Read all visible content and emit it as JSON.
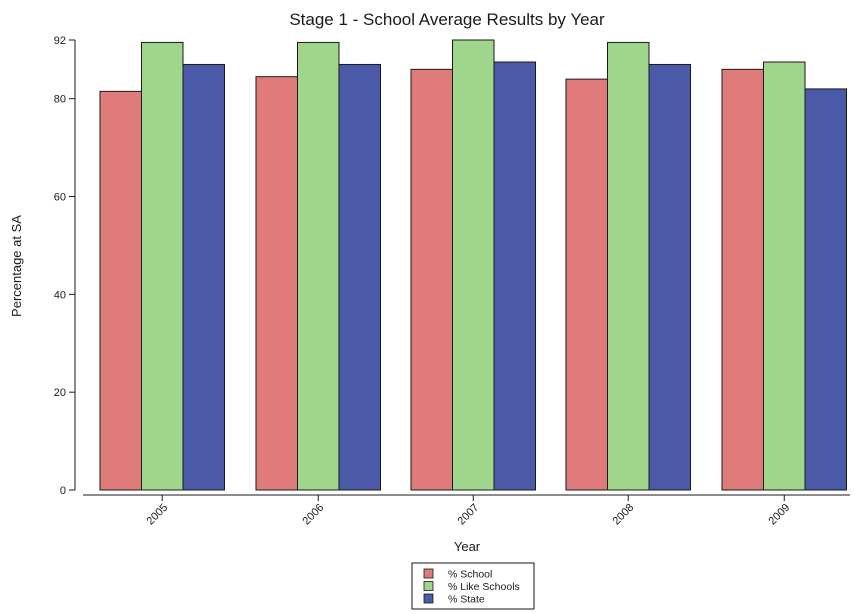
{
  "chart_data": {
    "type": "bar",
    "title": "Stage 1 - School Average Results by Year",
    "xlabel": "Year",
    "ylabel": "Percentage at SA",
    "categories": [
      "2005",
      "2006",
      "2007",
      "2008",
      "2009"
    ],
    "ylim": [
      0,
      92
    ],
    "yticks": [
      0,
      20,
      40,
      60,
      80,
      92
    ],
    "grid": false,
    "legend_position": "bottom",
    "series": [
      {
        "name": "% School",
        "color": "#e07b7b",
        "values": [
          81.5,
          84.5,
          86.0,
          84.0,
          86.0
        ]
      },
      {
        "name": "% Like Schools",
        "color": "#9fd68c",
        "values": [
          91.5,
          91.5,
          92.0,
          91.5,
          87.5
        ]
      },
      {
        "name": "% State",
        "color": "#4a5aa8",
        "values": [
          87.0,
          87.0,
          87.5,
          87.0,
          82.0
        ]
      }
    ]
  }
}
